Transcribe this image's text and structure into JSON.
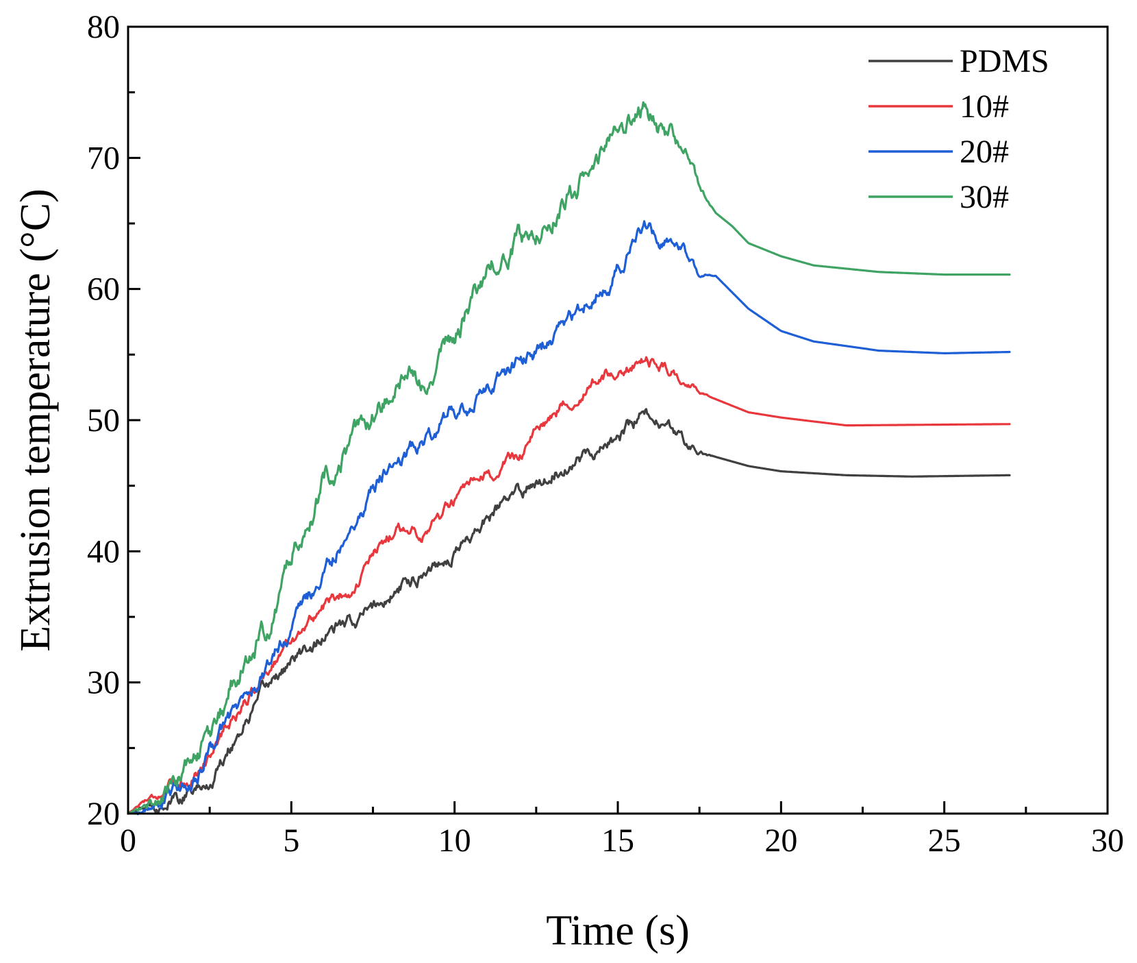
{
  "chart_data": {
    "type": "line",
    "title": "",
    "xlabel": "Time (s)",
    "ylabel": "Extrusion temperature (°C)",
    "xlim": [
      0,
      30
    ],
    "ylim": [
      20,
      80
    ],
    "xticks": [
      0,
      5,
      10,
      15,
      20,
      25,
      30
    ],
    "yticks": [
      20,
      30,
      40,
      50,
      60,
      70,
      80
    ],
    "x_minor_step": 2.5,
    "y_minor_step": 5,
    "grid": false,
    "legend_position": "top-right",
    "series": [
      {
        "name": "PDMS",
        "color": "#404040",
        "noise": 0.35,
        "x": [
          0,
          1,
          2,
          2.5,
          3,
          4,
          4.5,
          5,
          6,
          7,
          8,
          9,
          10,
          11,
          12,
          13,
          14,
          15,
          15.5,
          15.8,
          16.5,
          17,
          17.5,
          18,
          19,
          20,
          22,
          24,
          27
        ],
        "y": [
          20,
          20.8,
          21.5,
          22.2,
          24.8,
          28.5,
          30.5,
          31.5,
          33.5,
          34.8,
          36.5,
          38.5,
          40,
          42.5,
          44.5,
          46.2,
          47.5,
          48.5,
          49.8,
          50.7,
          49.2,
          48.5,
          47.5,
          47.2,
          46.5,
          46.1,
          45.8,
          45.7,
          45.8
        ]
      },
      {
        "name": "10#",
        "color": "#e8383d",
        "noise": 0.3,
        "x": [
          0,
          0.5,
          1,
          2,
          3,
          4,
          4.5,
          5,
          6,
          7,
          7.5,
          8,
          8.5,
          9,
          10,
          11,
          12,
          12.5,
          13,
          14,
          15,
          16,
          17,
          17.5,
          18,
          19,
          20,
          22,
          27
        ],
        "y": [
          20,
          21,
          21.6,
          22.8,
          26.5,
          30,
          31.8,
          33.2,
          35.8,
          37.5,
          39.5,
          41.2,
          41.8,
          41.5,
          43.8,
          45.5,
          47.5,
          49,
          50.5,
          52.5,
          53.8,
          54.5,
          53.2,
          52.2,
          51.6,
          50.6,
          50.2,
          49.6,
          49.7
        ]
      },
      {
        "name": "20#",
        "color": "#1f5fd6",
        "noise": 0.4,
        "x": [
          0,
          1,
          2,
          3,
          3.5,
          4,
          5,
          6,
          7,
          8,
          9,
          10,
          10.5,
          11,
          12,
          13,
          14,
          15,
          16,
          16.5,
          17,
          17.5,
          18,
          19,
          20,
          21,
          23,
          25,
          27
        ],
        "y": [
          20,
          20.6,
          22.5,
          26.8,
          28.5,
          30,
          34.3,
          38,
          42.8,
          46.5,
          48.5,
          51,
          50.5,
          52.5,
          54.3,
          56.3,
          58.8,
          61.5,
          65,
          63.8,
          63,
          61,
          61,
          58.5,
          56.8,
          56,
          55.3,
          55.1,
          55.2
        ]
      },
      {
        "name": "30#",
        "color": "#3fa363",
        "noise": 0.55,
        "x": [
          0,
          1,
          1.8,
          2.5,
          3,
          3.5,
          4,
          4.5,
          5,
          5.5,
          6,
          7,
          8,
          9,
          10,
          11,
          12,
          13,
          14,
          15,
          15.8,
          16.3,
          16.8,
          17.2,
          17.5,
          18,
          18.5,
          19,
          20,
          21,
          23,
          25,
          27
        ],
        "y": [
          20,
          21,
          23.5,
          25.5,
          28.5,
          31.5,
          33,
          35.5,
          39.5,
          42.5,
          45.5,
          48.5,
          52,
          53.5,
          56,
          61.5,
          63.5,
          66,
          68.5,
          71.5,
          73.8,
          72.5,
          71.3,
          70,
          67.5,
          65.8,
          64.8,
          63.5,
          62.5,
          61.8,
          61.3,
          61.1,
          61.1
        ]
      }
    ]
  }
}
